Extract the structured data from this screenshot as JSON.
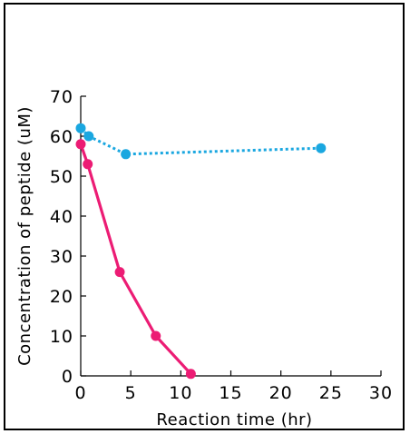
{
  "chart_data": {
    "type": "line",
    "xlabel": "Reaction time (hr)",
    "ylabel": "Concentration of peptide (uM)",
    "xlim": [
      0,
      30
    ],
    "ylim": [
      0,
      70
    ],
    "xticks": [
      0,
      5,
      10,
      15,
      20,
      25,
      30
    ],
    "yticks": [
      0,
      10,
      20,
      30,
      40,
      50,
      60,
      70
    ],
    "grid": false,
    "series": [
      {
        "color": "#ec1c74",
        "line_style": "solid",
        "points": [
          [
            0,
            58
          ],
          [
            0.7,
            53
          ],
          [
            3.9,
            26
          ],
          [
            7.5,
            10
          ],
          [
            11,
            0.5
          ]
        ]
      },
      {
        "color": "#1aa7e0",
        "line_style": "dotted",
        "points": [
          [
            0,
            62
          ],
          [
            0.8,
            60
          ],
          [
            4.5,
            55.5
          ],
          [
            24,
            57
          ]
        ]
      }
    ]
  }
}
